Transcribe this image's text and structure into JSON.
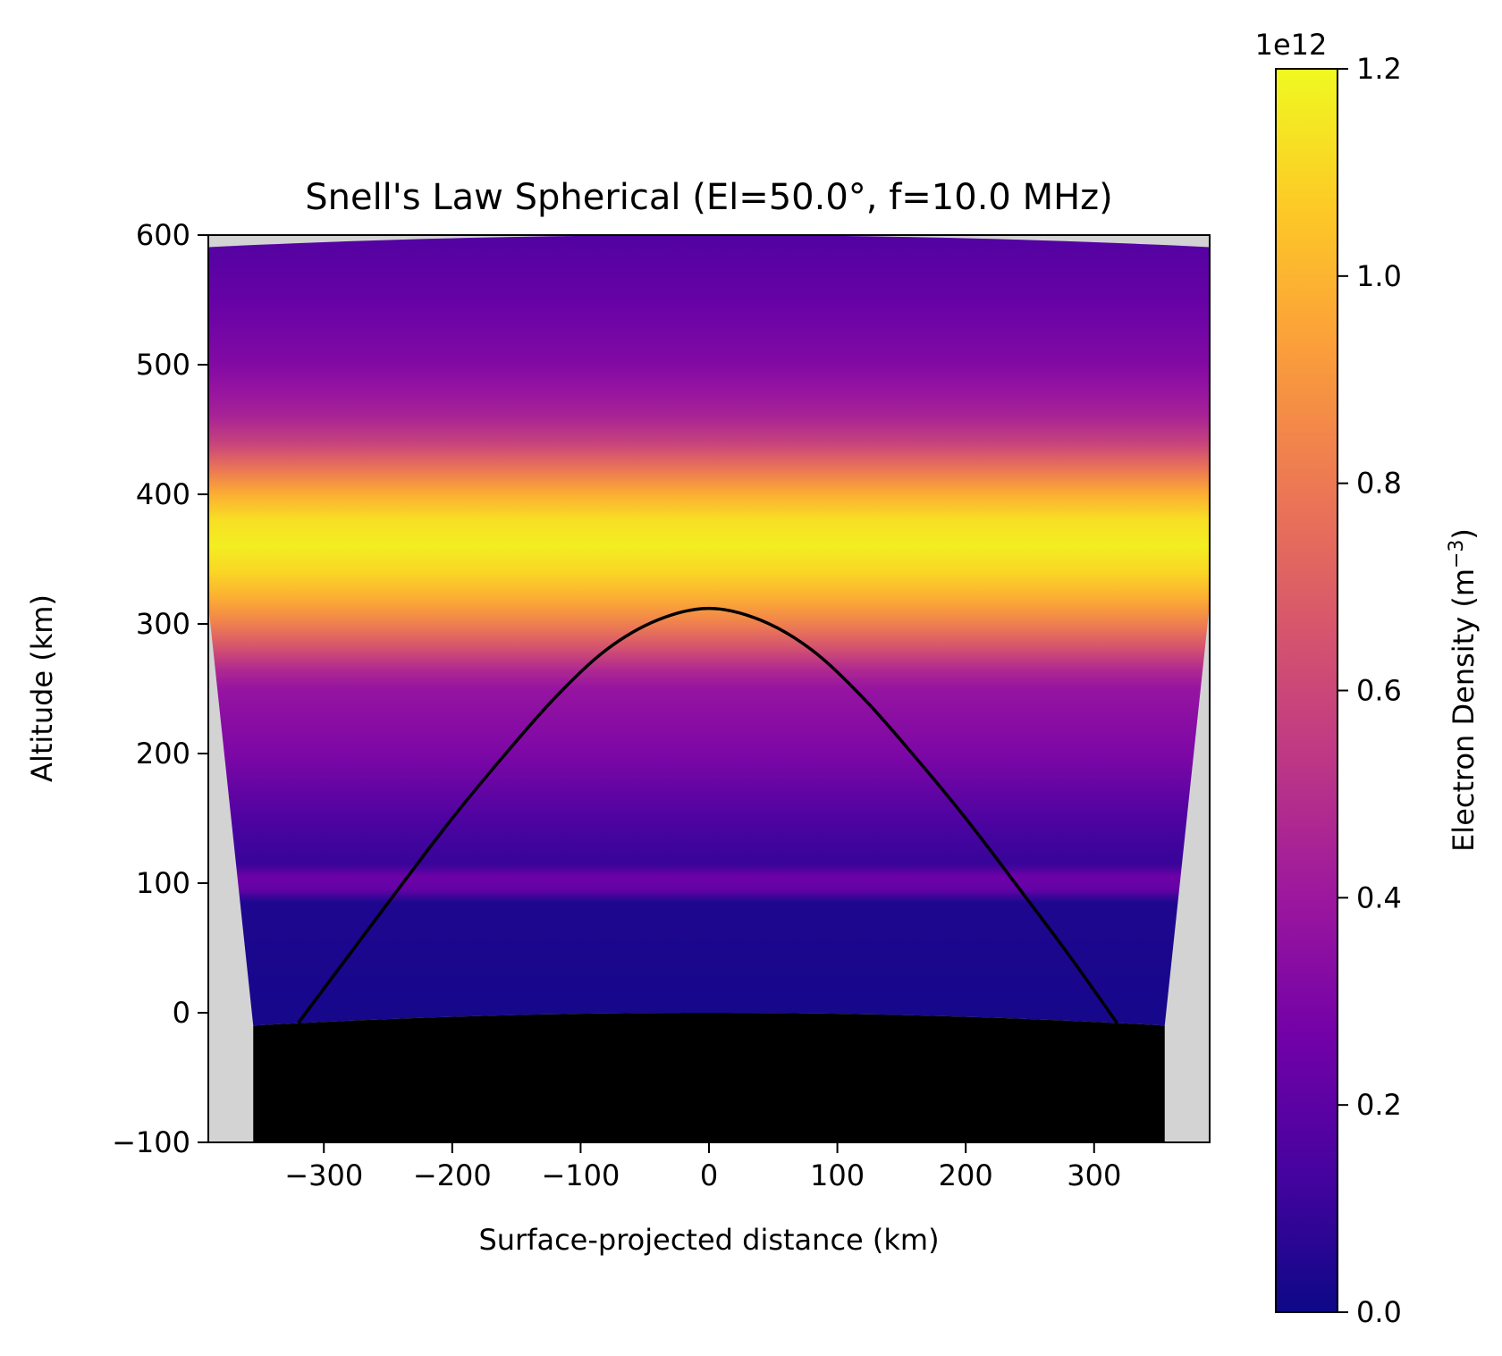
{
  "chart_data": {
    "type": "heatmap",
    "title": "Snell's Law Spherical (El=50.0°, f=10.0 MHz)",
    "xlabel": "Surface-projected distance (km)",
    "ylabel": "Altitude (km)",
    "xlim": [
      -390,
      390
    ],
    "ylim": [
      -100,
      600
    ],
    "x_ticks": [
      -300,
      -200,
      -100,
      0,
      100,
      200,
      300
    ],
    "x_tick_labels": [
      "−300",
      "−200",
      "−100",
      "0",
      "100",
      "200",
      "300"
    ],
    "y_ticks": [
      -100,
      0,
      100,
      200,
      300,
      400,
      500,
      600
    ],
    "y_tick_labels": [
      "−100",
      "0",
      "100",
      "200",
      "300",
      "400",
      "500",
      "600"
    ],
    "grid": false,
    "colormap": "plasma",
    "colorbar": {
      "label": "Electron Density (m⁻³)",
      "label_main": "Electron Density (m",
      "label_sup": "−3",
      "label_close": ")",
      "offset_text": "1e12",
      "range": [
        0.0,
        1.2
      ],
      "ticks": [
        0.0,
        0.2,
        0.4,
        0.6,
        0.8,
        1.0,
        1.2
      ],
      "tick_labels": [
        "0.0",
        "0.2",
        "0.4",
        "0.6",
        "0.8",
        "1.0",
        "1.2"
      ]
    },
    "density_profile": {
      "altitude_km": [
        0,
        85,
        95,
        105,
        115,
        130,
        150,
        200,
        250,
        265,
        280,
        300,
        320,
        340,
        360,
        380,
        400,
        420,
        440,
        460,
        480,
        500,
        550,
        600
      ],
      "density_1e12": [
        0.02,
        0.04,
        0.22,
        0.25,
        0.1,
        0.12,
        0.16,
        0.3,
        0.38,
        0.48,
        0.63,
        0.82,
        0.98,
        1.1,
        1.17,
        1.13,
        0.98,
        0.78,
        0.58,
        0.45,
        0.38,
        0.32,
        0.23,
        0.17
      ]
    },
    "ray_path": {
      "x_km": [
        -320,
        -280,
        -240,
        -200,
        -160,
        -120,
        -80,
        -40,
        0,
        40,
        80,
        120,
        160,
        200,
        240,
        280,
        318
      ],
      "altitude_km": [
        -8,
        45,
        98,
        150,
        198,
        243,
        280,
        303,
        312,
        303,
        280,
        243,
        198,
        150,
        98,
        45,
        -8
      ]
    },
    "ground": {
      "label": "Earth surface",
      "color": "#000000"
    },
    "colors": {
      "out_of_domain": "#d3d3d3",
      "ray": "#000000",
      "plasma_stops": [
        "#0d0887",
        "#46039f",
        "#7201a8",
        "#9c179e",
        "#bd3786",
        "#d8576b",
        "#ed7953",
        "#fb9f3a",
        "#fdca26",
        "#f0f921"
      ]
    }
  }
}
